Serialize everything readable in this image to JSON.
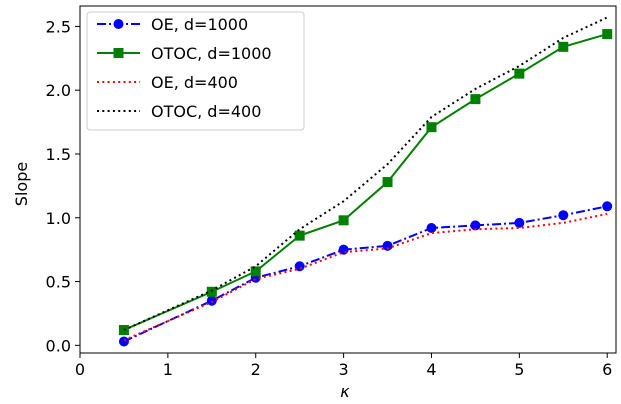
{
  "chart_data": {
    "type": "line",
    "xlabel": "κ",
    "ylabel": "Slope",
    "xlim": [
      0,
      6.1
    ],
    "ylim": [
      -0.06,
      2.66
    ],
    "xticks": [
      0,
      1,
      2,
      3,
      4,
      5,
      6
    ],
    "xtick_labels": [
      "0",
      "1",
      "2",
      "3",
      "4",
      "5",
      "6"
    ],
    "yticks": [
      0.0,
      0.5,
      1.0,
      1.5,
      2.0,
      2.5
    ],
    "ytick_labels": [
      "0.0",
      "0.5",
      "1.0",
      "1.5",
      "2.0",
      "2.5"
    ],
    "grid": false,
    "legend_position": "top-left",
    "x": [
      0.5,
      1.5,
      2.0,
      2.5,
      3.0,
      3.5,
      4.0,
      4.5,
      5.0,
      5.5,
      6.0
    ],
    "series": [
      {
        "name": "OE, d=1000",
        "color": "#0000ff",
        "line_style": "dashdot",
        "marker": "circle",
        "values": [
          0.03,
          0.35,
          0.53,
          0.62,
          0.75,
          0.78,
          0.92,
          0.94,
          0.96,
          1.02,
          1.09
        ]
      },
      {
        "name": "OTOC, d=1000",
        "color": "#008000",
        "line_style": "solid",
        "marker": "square",
        "values": [
          0.12,
          0.42,
          0.58,
          0.86,
          0.98,
          1.28,
          1.71,
          1.93,
          2.13,
          2.34,
          2.44
        ]
      },
      {
        "name": "OE, d=400",
        "color": "#ff0000",
        "line_style": "dotted",
        "marker": "none",
        "values": [
          0.04,
          0.34,
          0.52,
          0.6,
          0.73,
          0.76,
          0.88,
          0.91,
          0.92,
          0.96,
          1.03
        ]
      },
      {
        "name": "OTOC, d=400",
        "color": "#000000",
        "line_style": "dotted",
        "marker": "none",
        "values": [
          0.12,
          0.43,
          0.62,
          0.91,
          1.13,
          1.42,
          1.79,
          2.01,
          2.19,
          2.41,
          2.57
        ]
      }
    ]
  }
}
